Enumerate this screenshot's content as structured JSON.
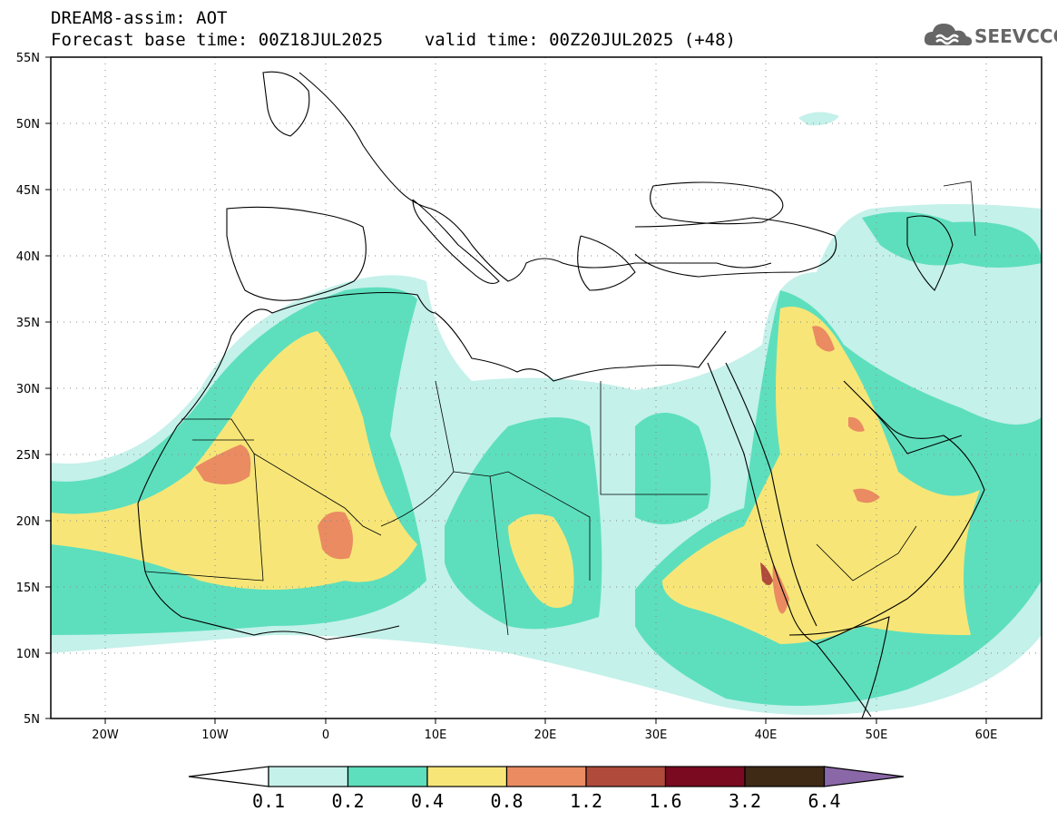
{
  "header": {
    "model_line": "DREAM8-assim: AOT",
    "base_time": "Forecast base time: 00Z18JUL2025",
    "valid_time": "valid time: 00Z20JUL2025 (+48)"
  },
  "logo": {
    "text": "SEEVCCC",
    "icon": "cloud-logo-icon"
  },
  "map": {
    "lat_labels": [
      "55N",
      "50N",
      "45N",
      "40N",
      "35N",
      "30N",
      "25N",
      "20N",
      "15N",
      "10N",
      "5N"
    ],
    "lon_labels": [
      "20W",
      "10W",
      "0",
      "10E",
      "20E",
      "30E",
      "40E",
      "50E",
      "60E"
    ],
    "lat_range": [
      5,
      55
    ],
    "lon_range": [
      -25,
      65
    ],
    "grid": "dotted"
  },
  "colorbar": {
    "labels": [
      "0.1",
      "0.2",
      "0.4",
      "0.8",
      "1.2",
      "1.6",
      "3.2",
      "6.4"
    ],
    "colors": [
      "#ffffff",
      "#c4f1ea",
      "#5ddfbd",
      "#f7e677",
      "#ea8b62",
      "#b04a3b",
      "#7a0a20",
      "#3e2a15",
      "#8a68a8"
    ]
  },
  "colors": {
    "c1": "#c4f1ea",
    "c2": "#5ddfbd",
    "c3": "#f7e677",
    "c4": "#ea8b62",
    "c5": "#b04a3b",
    "c6": "#7a0a20"
  }
}
